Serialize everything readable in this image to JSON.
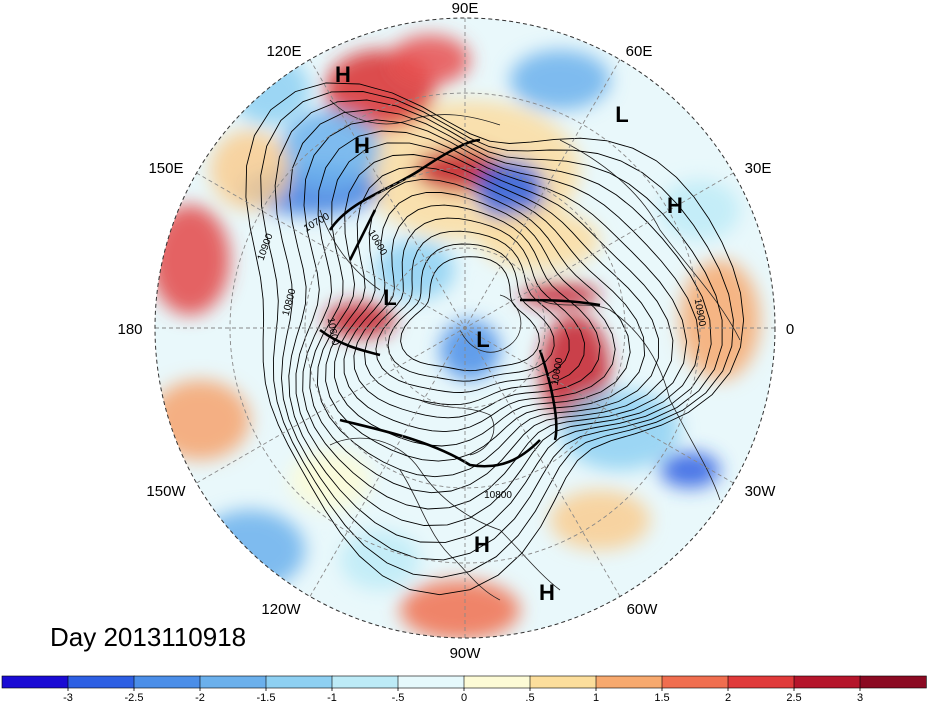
{
  "title": "Day 2013110918",
  "longitude_labels": {
    "top": "90E",
    "upper_left": "120E",
    "upper_right": "60E",
    "left_upper": "150E",
    "right_upper": "30E",
    "left": "180",
    "right": "0",
    "left_lower": "150W",
    "right_lower": "30W",
    "lower_left": "120W",
    "lower_right": "60W",
    "bottom": "90W"
  },
  "pressure_centers": [
    {
      "label": "H"
    },
    {
      "label": "H"
    },
    {
      "label": "L"
    },
    {
      "label": "H"
    },
    {
      "label": "L"
    },
    {
      "label": "L"
    },
    {
      "label": "H"
    },
    {
      "label": "H"
    }
  ],
  "contour_labels": [
    "10900",
    "10800",
    "10700",
    "10600",
    "10600",
    "10900",
    "10800",
    "10600"
  ],
  "colorbar": {
    "ticks": [
      "-3",
      "-2.5",
      "-2",
      "-1.5",
      "-1",
      "-.5",
      "0",
      ".5",
      "1",
      "1.5",
      "2",
      "2.5",
      "3"
    ],
    "colors": [
      "#1a0bd4",
      "#2d5fe3",
      "#4b8ee8",
      "#6bb0ec",
      "#8ed0f2",
      "#bdebf7",
      "#e6f9fc",
      "#fdfbd6",
      "#fcde9c",
      "#f7a96e",
      "#f06e4f",
      "#e03a3a",
      "#b5152b",
      "#8b0a22"
    ]
  }
}
